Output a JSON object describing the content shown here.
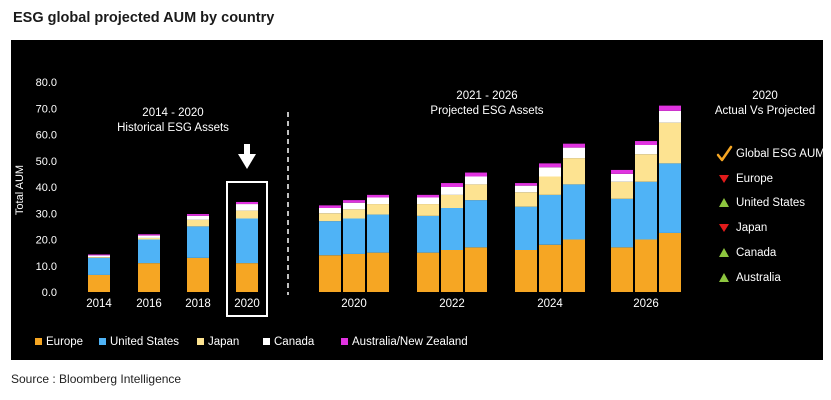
{
  "title": "ESG global projected AUM by country",
  "source": "Source : Bloomberg Intelligence",
  "colors": {
    "Europe": "#f6a623",
    "United States": "#4fb3f6",
    "Japan": "#fde391",
    "Canada": "#ffffff",
    "Australia/New Zealand": "#e033e0",
    "up": "#8dc63f",
    "down": "#e21b1b",
    "check": "#f6a623",
    "highlight": "#ffffff"
  },
  "chart_data": {
    "type": "bar",
    "stacked": true,
    "ylabel": "Total AUM",
    "ylim": [
      0,
      80
    ],
    "yticks": [
      "0.0",
      "10.0",
      "20.0",
      "30.0",
      "40.0",
      "50.0",
      "60.0",
      "70.0",
      "80.0"
    ],
    "grid": false,
    "legend_position": "bottom",
    "series_names": [
      "Europe",
      "United States",
      "Japan",
      "Canada",
      "Australia/New Zealand"
    ],
    "historical": {
      "label_line1": "2014 - 2020",
      "label_line2": "Historical ESG Assets",
      "categories": [
        "2014",
        "2016",
        "2018",
        "2020"
      ],
      "bars": [
        [
          6.5,
          6.5,
          0.3,
          0.6,
          0.4
        ],
        [
          11.0,
          9.0,
          0.6,
          0.9,
          0.5
        ],
        [
          13.0,
          12.0,
          2.5,
          1.5,
          0.7
        ],
        [
          11.0,
          17.0,
          3.0,
          2.5,
          0.8
        ]
      ],
      "highlighted_category": "2020"
    },
    "projected": {
      "label_line1": "2021 - 2026",
      "label_line2": "Projected ESG Assets",
      "categories": [
        "2020",
        "2022",
        "2024",
        "2026"
      ],
      "groups": [
        [
          [
            14.0,
            13.0,
            3.0,
            2.0,
            1.0
          ],
          [
            14.5,
            13.5,
            3.5,
            2.5,
            1.0
          ],
          [
            15.0,
            14.5,
            4.0,
            2.5,
            1.0
          ]
        ],
        [
          [
            15.0,
            14.0,
            4.5,
            2.5,
            1.0
          ],
          [
            16.0,
            16.0,
            5.0,
            3.0,
            1.5
          ],
          [
            17.0,
            18.0,
            6.0,
            3.0,
            1.5
          ]
        ],
        [
          [
            16.0,
            16.5,
            5.5,
            2.5,
            1.0
          ],
          [
            18.0,
            19.0,
            7.0,
            3.5,
            1.5
          ],
          [
            20.0,
            21.0,
            10.0,
            4.0,
            1.5
          ]
        ],
        [
          [
            17.0,
            18.5,
            6.5,
            3.0,
            1.5
          ],
          [
            20.0,
            22.0,
            10.5,
            3.5,
            1.5
          ],
          [
            22.5,
            26.5,
            15.5,
            4.5,
            2.0
          ]
        ]
      ]
    },
    "side_panel": {
      "title_line1": "2020",
      "title_line2": "Actual Vs Projected",
      "items": [
        {
          "label": "Global ESG AUM",
          "marker": "check"
        },
        {
          "label": "Europe",
          "marker": "down"
        },
        {
          "label": "United States",
          "marker": "up"
        },
        {
          "label": "Japan",
          "marker": "down"
        },
        {
          "label": "Canada",
          "marker": "up"
        },
        {
          "label": "Australia",
          "marker": "up"
        }
      ]
    }
  }
}
